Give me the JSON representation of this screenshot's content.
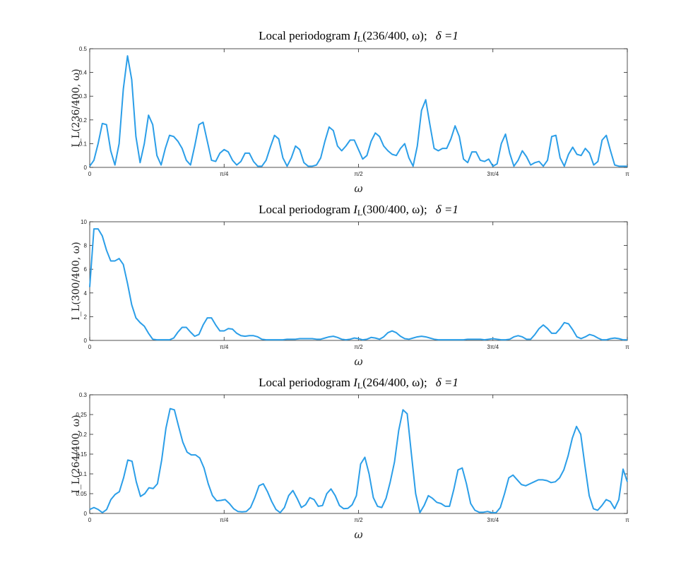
{
  "colors": {
    "line": "#2b9ee8",
    "axis": "#262626",
    "background": "#ffffff"
  },
  "chart_data": [
    {
      "type": "line",
      "title_prefix": "Local periodogram ",
      "title_symbol": "I",
      "title_subscript": "L",
      "title_args": "(236/400, ω);",
      "title_delta": "δ =1",
      "xlabel": "ω",
      "ylabel": "I_L(236/400, ω)",
      "xlim": [
        0,
        3.1416
      ],
      "ylim": [
        0,
        0.5
      ],
      "xtick_labels": [
        "0",
        "π/4",
        "π/2",
        "3π/4",
        "π"
      ],
      "ytick_labels": [
        "0",
        "0.1",
        "0.2",
        "0.3",
        "0.4",
        "0.5"
      ],
      "ytick_values": [
        0,
        0.1,
        0.2,
        0.3,
        0.4,
        0.5
      ],
      "series": [
        {
          "values": [
            0.005,
            0.03,
            0.1,
            0.185,
            0.18,
            0.07,
            0.01,
            0.1,
            0.33,
            0.47,
            0.37,
            0.13,
            0.02,
            0.1,
            0.22,
            0.18,
            0.05,
            0.01,
            0.08,
            0.135,
            0.13,
            0.11,
            0.08,
            0.03,
            0.01,
            0.09,
            0.18,
            0.19,
            0.11,
            0.03,
            0.025,
            0.06,
            0.075,
            0.065,
            0.03,
            0.01,
            0.025,
            0.06,
            0.06,
            0.025,
            0.005,
            0.005,
            0.03,
            0.085,
            0.135,
            0.12,
            0.04,
            0.005,
            0.04,
            0.09,
            0.075,
            0.02,
            0.005,
            0.005,
            0.01,
            0.04,
            0.11,
            0.17,
            0.155,
            0.09,
            0.07,
            0.09,
            0.115,
            0.115,
            0.075,
            0.035,
            0.05,
            0.11,
            0.145,
            0.13,
            0.09,
            0.07,
            0.055,
            0.05,
            0.08,
            0.1,
            0.04,
            0.005,
            0.09,
            0.24,
            0.285,
            0.18,
            0.08,
            0.07,
            0.08,
            0.08,
            0.12,
            0.175,
            0.13,
            0.035,
            0.02,
            0.065,
            0.065,
            0.03,
            0.025,
            0.035,
            0.005,
            0.015,
            0.1,
            0.14,
            0.06,
            0.005,
            0.03,
            0.07,
            0.045,
            0.01,
            0.02,
            0.025,
            0.005,
            0.03,
            0.13,
            0.135,
            0.04,
            0.005,
            0.055,
            0.085,
            0.055,
            0.05,
            0.08,
            0.06,
            0.01,
            0.025,
            0.115,
            0.135,
            0.07,
            0.01,
            0.005,
            0.005,
            0.005
          ]
        }
      ]
    },
    {
      "type": "line",
      "title_prefix": "Local periodogram ",
      "title_symbol": "I",
      "title_subscript": "L",
      "title_args": "(300/400, ω);",
      "title_delta": "δ =1",
      "xlabel": "ω",
      "ylabel": "I_L(300/400, ω)",
      "xlim": [
        0,
        3.1416
      ],
      "ylim": [
        0,
        10
      ],
      "xtick_labels": [
        "0",
        "π/4",
        "π/2",
        "3π/4",
        "π"
      ],
      "ytick_labels": [
        "0",
        "2",
        "4",
        "6",
        "8",
        "10"
      ],
      "ytick_values": [
        0,
        2,
        4,
        6,
        8,
        10
      ],
      "series": [
        {
          "values": [
            4.5,
            9.4,
            9.4,
            8.8,
            7.6,
            6.7,
            6.7,
            6.9,
            6.4,
            4.8,
            3.0,
            1.9,
            1.5,
            1.2,
            0.6,
            0.1,
            0.05,
            0.05,
            0.05,
            0.05,
            0.2,
            0.7,
            1.1,
            1.1,
            0.7,
            0.35,
            0.5,
            1.3,
            1.9,
            1.9,
            1.3,
            0.8,
            0.8,
            1.0,
            0.95,
            0.6,
            0.4,
            0.35,
            0.4,
            0.4,
            0.3,
            0.1,
            0.05,
            0.05,
            0.05,
            0.05,
            0.05,
            0.1,
            0.1,
            0.1,
            0.15,
            0.15,
            0.15,
            0.15,
            0.1,
            0.1,
            0.2,
            0.3,
            0.35,
            0.25,
            0.1,
            0.05,
            0.1,
            0.2,
            0.15,
            0.05,
            0.1,
            0.25,
            0.2,
            0.1,
            0.3,
            0.65,
            0.8,
            0.65,
            0.35,
            0.15,
            0.1,
            0.2,
            0.3,
            0.35,
            0.3,
            0.2,
            0.1,
            0.05,
            0.05,
            0.05,
            0.05,
            0.05,
            0.05,
            0.05,
            0.1,
            0.1,
            0.1,
            0.1,
            0.05,
            0.1,
            0.15,
            0.1,
            0.05,
            0.05,
            0.1,
            0.3,
            0.4,
            0.3,
            0.1,
            0.1,
            0.5,
            1.0,
            1.3,
            1.0,
            0.6,
            0.6,
            1.0,
            1.5,
            1.4,
            0.9,
            0.3,
            0.15,
            0.3,
            0.5,
            0.4,
            0.2,
            0.05,
            0.05,
            0.15,
            0.2,
            0.15,
            0.05,
            0.05
          ]
        }
      ]
    },
    {
      "type": "line",
      "title_prefix": "Local periodogram ",
      "title_symbol": "I",
      "title_subscript": "L",
      "title_args": "(264/400, ω);",
      "title_delta": "δ =1",
      "xlabel": "ω",
      "ylabel": "I_L(264/400, ω)",
      "xlim": [
        0,
        3.1416
      ],
      "ylim": [
        0,
        0.3
      ],
      "xtick_labels": [
        "0",
        "π/4",
        "π/2",
        "3π/4",
        "π"
      ],
      "ytick_labels": [
        "0",
        "0.05",
        "0.1",
        "0.15",
        "0.2",
        "0.25",
        "0.3"
      ],
      "ytick_values": [
        0,
        0.05,
        0.1,
        0.15,
        0.2,
        0.25,
        0.3
      ],
      "series": [
        {
          "values": [
            0.01,
            0.015,
            0.01,
            0.002,
            0.01,
            0.035,
            0.048,
            0.055,
            0.09,
            0.135,
            0.132,
            0.08,
            0.043,
            0.05,
            0.065,
            0.063,
            0.075,
            0.135,
            0.215,
            0.265,
            0.262,
            0.22,
            0.18,
            0.155,
            0.148,
            0.148,
            0.14,
            0.115,
            0.075,
            0.045,
            0.032,
            0.033,
            0.035,
            0.025,
            0.012,
            0.005,
            0.004,
            0.005,
            0.015,
            0.04,
            0.07,
            0.075,
            0.055,
            0.03,
            0.01,
            0.002,
            0.015,
            0.045,
            0.058,
            0.038,
            0.015,
            0.022,
            0.04,
            0.035,
            0.018,
            0.02,
            0.05,
            0.062,
            0.045,
            0.02,
            0.012,
            0.013,
            0.022,
            0.045,
            0.125,
            0.142,
            0.1,
            0.04,
            0.018,
            0.015,
            0.038,
            0.08,
            0.13,
            0.21,
            0.262,
            0.252,
            0.15,
            0.05,
            0.002,
            0.02,
            0.045,
            0.038,
            0.028,
            0.025,
            0.018,
            0.018,
            0.06,
            0.11,
            0.115,
            0.075,
            0.025,
            0.008,
            0.003,
            0.003,
            0.005,
            0.002,
            0.002,
            0.015,
            0.05,
            0.09,
            0.097,
            0.085,
            0.073,
            0.07,
            0.075,
            0.08,
            0.085,
            0.085,
            0.083,
            0.078,
            0.08,
            0.09,
            0.11,
            0.145,
            0.19,
            0.22,
            0.2,
            0.12,
            0.045,
            0.012,
            0.008,
            0.02,
            0.035,
            0.03,
            0.012,
            0.035,
            0.112,
            0.08
          ]
        }
      ]
    }
  ]
}
